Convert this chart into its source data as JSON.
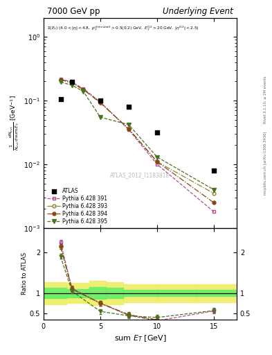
{
  "title_left": "7000 GeV pp",
  "title_right": "Underlying Event",
  "watermark": "ATLAS_2012_I1183818",
  "xlabel": "sum E$_T$ [GeV]",
  "xlim": [
    0,
    17
  ],
  "ylim_main": [
    0.001,
    2.0
  ],
  "ylim_ratio": [
    0.35,
    2.6
  ],
  "atlas_x": [
    1.5,
    2.5,
    5.0,
    7.5,
    10.0,
    15.0
  ],
  "atlas_y": [
    0.105,
    0.195,
    0.1,
    0.08,
    0.032,
    0.008
  ],
  "p391_x": [
    1.5,
    2.5,
    3.5,
    5.0,
    7.5,
    10.0,
    15.0
  ],
  "p391_y": [
    0.22,
    0.195,
    0.155,
    0.095,
    0.035,
    0.01,
    0.0018
  ],
  "p391_color": "#b05090",
  "p391_label": "Pythia 6.428 391",
  "p393_x": [
    1.5,
    2.5,
    3.5,
    5.0,
    7.5,
    10.0,
    15.0
  ],
  "p393_y": [
    0.215,
    0.19,
    0.15,
    0.093,
    0.036,
    0.011,
    0.0035
  ],
  "p393_color": "#888830",
  "p393_label": "Pythia 6.428 393",
  "p394_x": [
    1.5,
    2.5,
    3.5,
    5.0,
    7.5,
    10.0,
    15.0
  ],
  "p394_y": [
    0.215,
    0.19,
    0.15,
    0.093,
    0.036,
    0.011,
    0.0025
  ],
  "p394_color": "#8B4513",
  "p394_label": "Pythia 6.428 394",
  "p395_x": [
    1.5,
    2.5,
    3.5,
    5.0,
    7.5,
    10.0,
    15.0
  ],
  "p395_y": [
    0.195,
    0.175,
    0.14,
    0.055,
    0.042,
    0.013,
    0.004
  ],
  "p395_color": "#4a7020",
  "p395_label": "Pythia 6.428 395",
  "band_edges": [
    0,
    2,
    4,
    5.5,
    7,
    10,
    13.5,
    17
  ],
  "green_lo": [
    0.87,
    0.9,
    0.85,
    0.87,
    0.92,
    0.92,
    0.92
  ],
  "green_hi": [
    1.13,
    1.1,
    1.15,
    1.13,
    1.08,
    1.08,
    1.08
  ],
  "yellow_lo": [
    0.73,
    0.75,
    0.7,
    0.73,
    0.78,
    0.78,
    0.78
  ],
  "yellow_hi": [
    1.27,
    1.25,
    1.3,
    1.27,
    1.22,
    1.22,
    1.22
  ],
  "ratio_x": [
    1.5,
    2.5,
    5.0,
    7.5,
    10.0,
    15.0
  ],
  "ratio_p391": [
    2.25,
    1.12,
    0.75,
    0.45,
    0.32,
    0.56
  ],
  "ratio_p393": [
    2.15,
    1.1,
    0.75,
    0.46,
    0.34,
    null
  ],
  "ratio_p394": [
    2.15,
    1.1,
    0.755,
    0.47,
    0.34,
    null
  ],
  "ratio_p395": [
    1.9,
    1.05,
    0.55,
    0.44,
    0.4,
    0.57
  ],
  "right_text_top": "Rivet 3.1.10, ≥ 2M events",
  "right_text_bottom": "mcplots.cern.ch [arXiv:1306.3436]"
}
